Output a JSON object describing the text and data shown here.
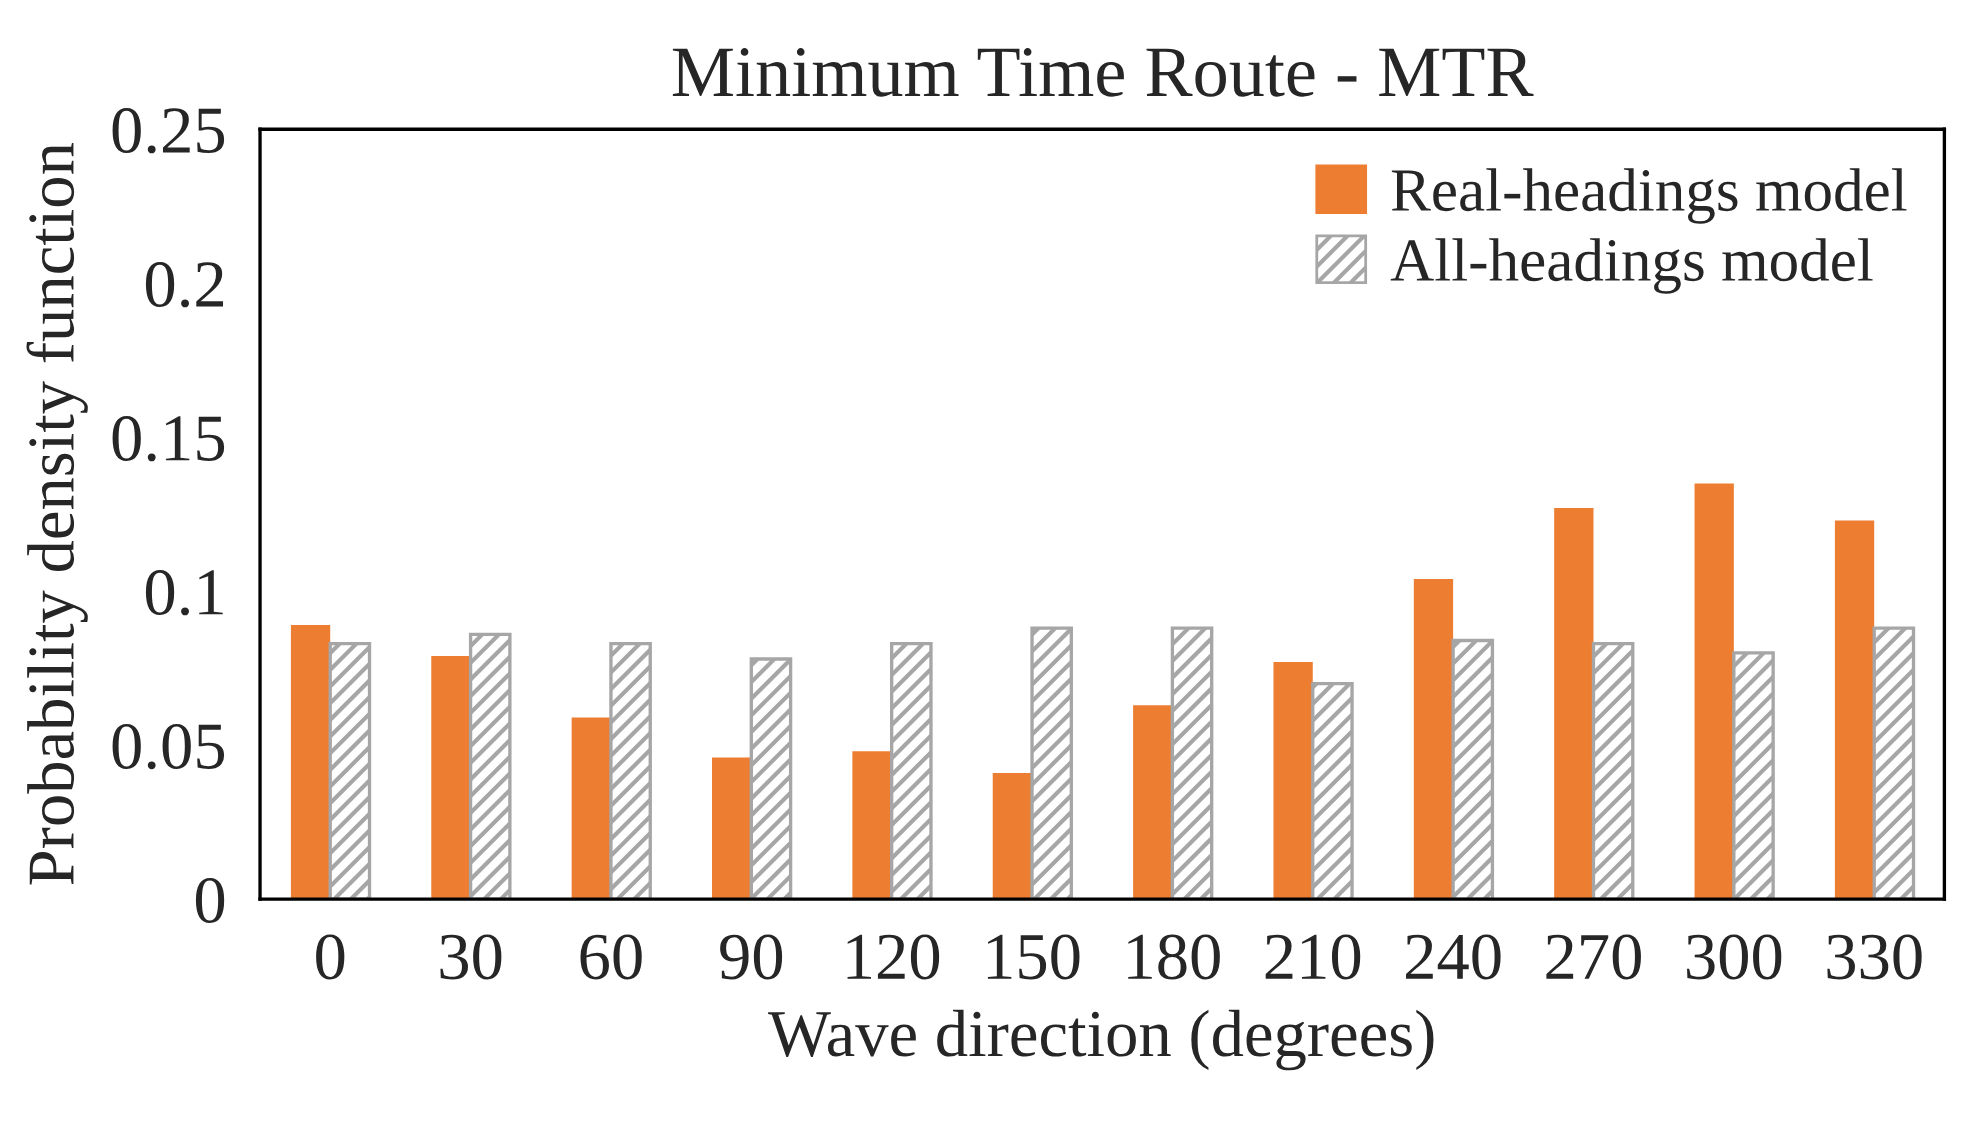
{
  "chart_data": {
    "type": "bar",
    "title": "Minimum Time Route - MTR",
    "xlabel": "Wave direction (degrees)",
    "ylabel": "Probability density function",
    "categories": [
      "0",
      "30",
      "60",
      "90",
      "120",
      "150",
      "180",
      "210",
      "240",
      "270",
      "300",
      "330"
    ],
    "series": [
      {
        "name": "Real-headings model",
        "color": "#ed7d31",
        "values": [
          0.089,
          0.079,
          0.059,
          0.046,
          0.048,
          0.041,
          0.063,
          0.077,
          0.104,
          0.127,
          0.135,
          0.123
        ]
      },
      {
        "name": "All-headings model",
        "color": "#a6a6a6",
        "values": [
          0.083,
          0.086,
          0.083,
          0.078,
          0.083,
          0.088,
          0.088,
          0.07,
          0.084,
          0.083,
          0.08,
          0.088
        ]
      }
    ],
    "ylim": [
      0,
      0.25
    ],
    "yticks": [
      {
        "value": 0,
        "label": "0"
      },
      0.05,
      0.1,
      0.15,
      0.2,
      0.25
    ],
    "grid": false,
    "legend": "top right"
  }
}
